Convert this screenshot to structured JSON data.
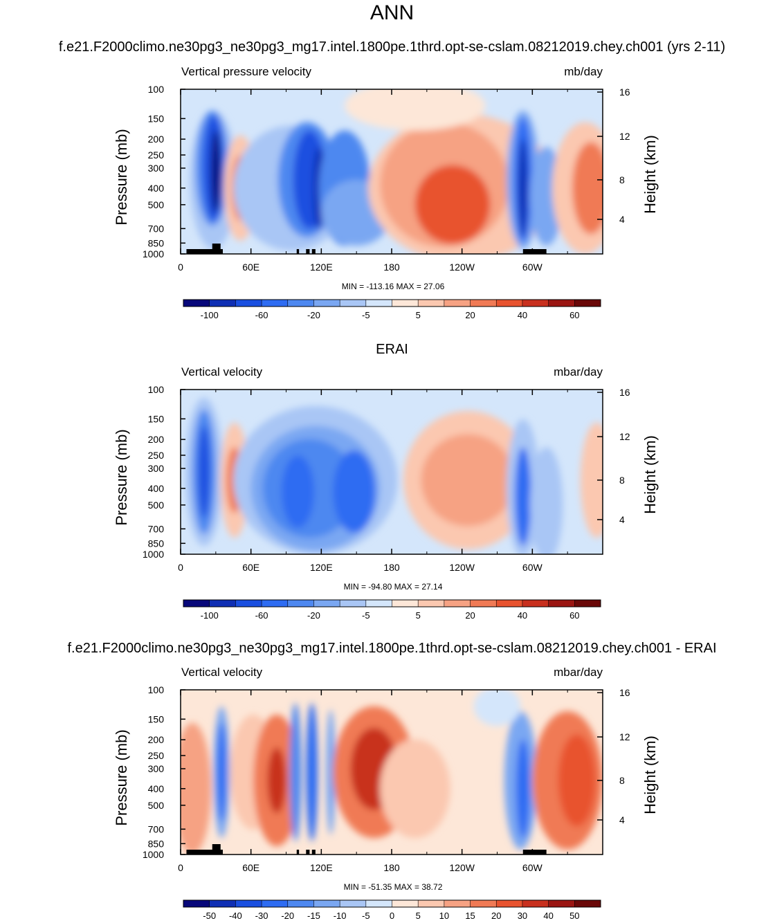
{
  "figure": {
    "title": "ANN",
    "model_case": "f.e21.F2000climo.ne30pg3_ne30pg3_mg17.intel.1800pe.1thrd.opt-se-cslam.08212019.chey.ch001 (yrs 2-11)",
    "obs_title": "ERAI",
    "diff_title": "f.e21.F2000climo.ne30pg3_ne30pg3_mg17.intel.1800pe.1thrd.opt-se-cslam.08212019.chey.ch001 - ERAI"
  },
  "chart_data": [
    {
      "type": "heatmap",
      "left_label": "Vertical pressure velocity",
      "right_label": "mb/day",
      "xlabel": "",
      "ylabel": "Pressure (mb)",
      "ylabel_right": "Height (km)",
      "x_ticks": [
        "0",
        "60E",
        "120E",
        "180",
        "120W",
        "60W"
      ],
      "y_ticks": [
        "100",
        "150",
        "200",
        "250",
        "300",
        "400",
        "500",
        "700",
        "850",
        "1000"
      ],
      "y_ticks_right": [
        "16",
        "12",
        "8",
        "4"
      ],
      "xlim": [
        0,
        360
      ],
      "ylim": [
        1000,
        100
      ],
      "stats": "MIN = -113.16  MAX =  27.06",
      "colorbar_labels": [
        "-100",
        "-60",
        "-20",
        "-5",
        "5",
        "20",
        "40",
        "60"
      ]
    },
    {
      "type": "heatmap",
      "left_label": "Vertical velocity",
      "right_label": "mbar/day",
      "xlabel": "",
      "ylabel": "Pressure (mb)",
      "ylabel_right": "Height (km)",
      "x_ticks": [
        "0",
        "60E",
        "120E",
        "180",
        "120W",
        "60W"
      ],
      "y_ticks": [
        "100",
        "150",
        "200",
        "250",
        "300",
        "400",
        "500",
        "700",
        "850",
        "1000"
      ],
      "y_ticks_right": [
        "16",
        "12",
        "8",
        "4"
      ],
      "xlim": [
        0,
        360
      ],
      "ylim": [
        1000,
        100
      ],
      "stats": "MIN = -94.80  MAX =  27.14",
      "colorbar_labels": [
        "-100",
        "-60",
        "-20",
        "-5",
        "5",
        "20",
        "40",
        "60"
      ]
    },
    {
      "type": "heatmap",
      "left_label": "Vertical velocity",
      "right_label": "mbar/day",
      "xlabel": "",
      "ylabel": "Pressure (mb)",
      "ylabel_right": "Height (km)",
      "x_ticks": [
        "0",
        "60E",
        "120E",
        "180",
        "120W",
        "60W"
      ],
      "y_ticks": [
        "100",
        "150",
        "200",
        "250",
        "300",
        "400",
        "500",
        "700",
        "850",
        "1000"
      ],
      "y_ticks_right": [
        "16",
        "12",
        "8",
        "4"
      ],
      "xlim": [
        0,
        360
      ],
      "ylim": [
        1000,
        100
      ],
      "stats": "MIN = -51.35  MAX =  38.72",
      "colorbar_labels": [
        "-50",
        "-40",
        "-30",
        "-20",
        "-15",
        "-10",
        "-5",
        "0",
        "5",
        "10",
        "15",
        "20",
        "30",
        "40",
        "50"
      ]
    }
  ],
  "colors": {
    "colorbar": [
      "#08087a",
      "#0f2fb4",
      "#1a4fe0",
      "#2e6cf2",
      "#4e88f0",
      "#7aa7f2",
      "#a9c6f5",
      "#d4e6fb",
      "#fde7d8",
      "#fbc8b0",
      "#f6a283",
      "#f07a55",
      "#e8532f",
      "#c8301e",
      "#9a1512",
      "#6a0808"
    ],
    "terrain": "#000000"
  }
}
